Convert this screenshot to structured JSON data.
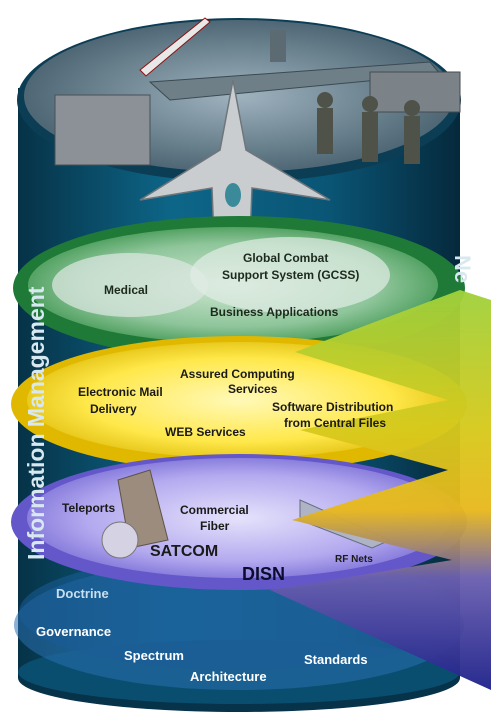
{
  "side_label": "Information Management",
  "right_label_fragment": "Ne",
  "layers": {
    "applications": {
      "color": "#2f8f3a",
      "items": {
        "medical": "Medical",
        "gcss_line1": "Global Combat",
        "gcss_line2": "Support System (GCSS)",
        "business": "Business Applications"
      }
    },
    "services": {
      "color": "#f2d400",
      "items": {
        "email_line1": "Electronic Mail",
        "email_line2": "Delivery",
        "assured_line1": "Assured Computing",
        "assured_line2": "Services",
        "web": "WEB Services",
        "software_line1": "Software Distribution",
        "software_line2": "from Central Files"
      }
    },
    "transport": {
      "color": "#7b6fd8",
      "items": {
        "teleports": "Teleports",
        "fiber_line1": "Commercial",
        "fiber_line2": "Fiber",
        "satcom": "SATCOM",
        "disn": "DISN",
        "rf_nets": "RF Nets"
      }
    },
    "foundation": {
      "color": "#1f63a8",
      "items": {
        "doctrine": "Doctrine",
        "governance": "Governance",
        "spectrum": "Spectrum",
        "architecture": "Architecture",
        "standards": "Standards"
      }
    }
  },
  "colors": {
    "cylinder": "#0b4f6e",
    "cylinder_dark": "#06324a",
    "arrow_top": "#8cc63f",
    "arrow_mid": "#e6c21a",
    "arrow_bottom": "#2b2a8f"
  }
}
